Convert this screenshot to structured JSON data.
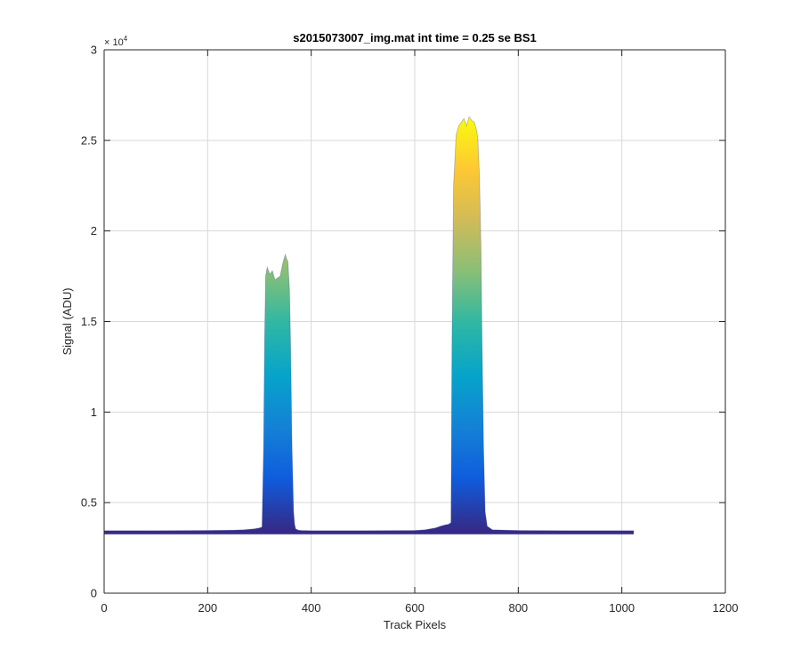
{
  "chart_data": {
    "type": "area",
    "title": "s2015073007_img.mat int time = 0.25 se   BS1",
    "xlabel": "Track Pixels",
    "ylabel": "Signal (ADU)",
    "xlim": [
      0,
      1200
    ],
    "ylim": [
      0,
      30000
    ],
    "x_ticks": [
      0,
      200,
      400,
      600,
      800,
      1000,
      1200
    ],
    "x_tick_labels": [
      "0",
      "200",
      "400",
      "600",
      "800",
      "1000",
      "1200"
    ],
    "y_ticks": [
      0,
      5000,
      10000,
      15000,
      20000,
      25000,
      30000
    ],
    "y_tick_labels": [
      "0",
      "0.5",
      "1",
      "1.5",
      "2",
      "2.5",
      "3"
    ],
    "y_exponent_label": "× 10",
    "y_exponent_power": "4",
    "grid": true,
    "colormap": "parula",
    "colormap_stops": [
      "#352a87",
      "#0f5cdd",
      "#1481d6",
      "#06a4ca",
      "#2eb7a4",
      "#87bf77",
      "#d1bb59",
      "#fec832",
      "#f9fb0e"
    ],
    "baseline_color": "#3b3b8c",
    "series": [
      {
        "x": [
          0,
          100,
          200,
          250,
          270,
          290,
          300,
          305,
          308,
          310,
          312,
          315,
          320,
          325,
          330,
          335,
          340,
          345,
          350,
          352,
          355,
          358,
          360,
          363,
          366,
          368,
          370,
          375,
          380,
          400,
          500,
          600,
          620,
          640,
          650,
          660,
          665,
          670,
          672,
          675,
          680,
          685,
          690,
          695,
          700,
          705,
          710,
          715,
          720,
          722,
          725,
          728,
          730,
          733,
          736,
          740,
          750,
          800,
          900,
          1000,
          1023
        ],
        "y": [
          3450,
          3450,
          3460,
          3480,
          3500,
          3550,
          3600,
          3650,
          8000,
          14000,
          17500,
          18000,
          17600,
          17800,
          17300,
          17400,
          17500,
          18200,
          18700,
          18500,
          18300,
          16800,
          14000,
          8000,
          4500,
          3800,
          3550,
          3480,
          3460,
          3450,
          3450,
          3460,
          3500,
          3600,
          3700,
          3780,
          3800,
          3900,
          14000,
          22500,
          25300,
          25800,
          26000,
          26200,
          25800,
          26300,
          26100,
          26000,
          25500,
          25000,
          23000,
          19000,
          14000,
          8000,
          4500,
          3700,
          3500,
          3460,
          3450,
          3450,
          3450
        ]
      }
    ]
  }
}
